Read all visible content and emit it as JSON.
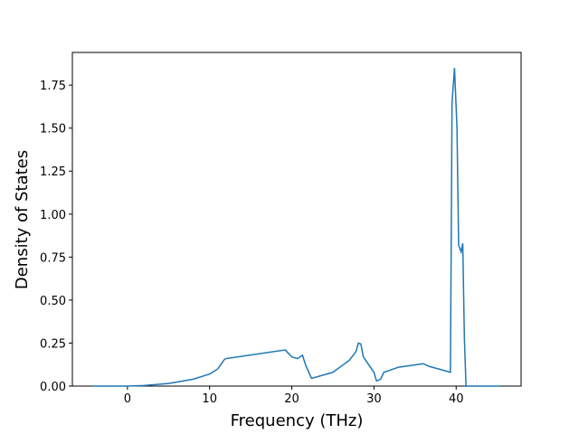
{
  "chart_data": {
    "type": "line",
    "xlabel": "Frequency (THz)",
    "ylabel": "Density of States",
    "x": [
      -4.3,
      0,
      2,
      5,
      8,
      10,
      11,
      11.8,
      12,
      19.2,
      20,
      20.7,
      21.3,
      21.7,
      22.4,
      25,
      27,
      27.8,
      28.1,
      28.4,
      28.7,
      30,
      30.3,
      30.8,
      31.2,
      33,
      36,
      36.7,
      39.3,
      39.5,
      39.8,
      40.1,
      40.3,
      40.6,
      40.8,
      41.0,
      41.2,
      45.4
    ],
    "series": [
      {
        "color": "#1f77b4",
        "values": [
          0,
          0,
          0.003,
          0.015,
          0.04,
          0.07,
          0.1,
          0.155,
          0.16,
          0.21,
          0.17,
          0.16,
          0.18,
          0.12,
          0.045,
          0.08,
          0.15,
          0.2,
          0.25,
          0.245,
          0.17,
          0.08,
          0.03,
          0.04,
          0.08,
          0.11,
          0.13,
          0.115,
          0.08,
          1.65,
          1.85,
          1.5,
          0.82,
          0.78,
          0.83,
          0.28,
          0,
          0
        ]
      }
    ],
    "xlim": [
      -6.7,
      47.9
    ],
    "ylim": [
      0,
      1.94
    ],
    "xticks": [
      0,
      10,
      20,
      30,
      40
    ],
    "yticks": [
      {
        "value": 0,
        "label": "0.00"
      },
      {
        "value": 0.25,
        "label": "0.25"
      },
      {
        "value": 0.5,
        "label": "0.50"
      },
      {
        "value": 0.75,
        "label": "0.75"
      },
      {
        "value": 1,
        "label": "1.00"
      },
      {
        "value": 1.25,
        "label": "1.25"
      },
      {
        "value": 1.5,
        "label": "1.50"
      },
      {
        "value": 1.75,
        "label": "1.75"
      }
    ]
  }
}
